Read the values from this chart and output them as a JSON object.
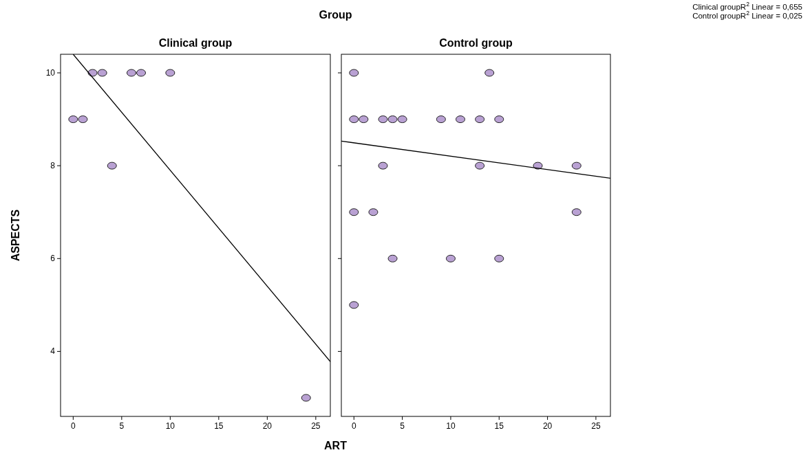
{
  "chart_data": [
    {
      "type": "scatter",
      "title": "Clinical group",
      "ylabel": "ASPECTS",
      "xlabel": "ART",
      "annotations": [
        "Group",
        "Clinical groupR$^{2}$ Linear = 0,655",
        "Control groupR$^{2}$ Linear = 0,025"
      ],
      "xlim": [
        -1.3,
        26.5
      ],
      "ylim": [
        2.6,
        10.4
      ],
      "xticks": [
        0,
        5,
        10,
        15,
        20,
        25
      ],
      "yticks": [
        4,
        6,
        8,
        10
      ],
      "grid": false,
      "marker": "circle",
      "series": [
        {
          "color": "#b9a1d3",
          "x": [
            0,
            1,
            2,
            3,
            6,
            7,
            10,
            4,
            24
          ],
          "values": [
            9,
            9,
            10,
            10,
            10,
            10,
            10,
            8,
            3
          ]
        },
        {
          "type": "line",
          "color": "#000000",
          "marker": "none",
          "x": [
            0,
            26.5
          ],
          "values": [
            10.4,
            3.78
          ]
        }
      ]
    },
    {
      "type": "scatter",
      "title": "Control group",
      "xlim": [
        -1.3,
        26.5
      ],
      "ylim": [
        2.6,
        10.4
      ],
      "xticks": [
        0,
        5,
        10,
        15,
        20,
        25
      ],
      "yticks": [
        4,
        6,
        8,
        10
      ],
      "tick_labels": "x",
      "grid": false,
      "marker": "circle",
      "series": [
        {
          "color": "#b9a1d3",
          "x": [
            0,
            14,
            0,
            1,
            3,
            4,
            5,
            9,
            11,
            13,
            15,
            3,
            13,
            19,
            23,
            0,
            2,
            23,
            4,
            10,
            15,
            0
          ],
          "values": [
            10,
            10,
            9,
            9,
            9,
            9,
            9,
            9,
            9,
            9,
            9,
            8,
            8,
            8,
            8,
            7,
            7,
            7,
            6,
            6,
            6,
            5
          ]
        },
        {
          "type": "line",
          "color": "#000000",
          "marker": "none",
          "x": [
            -1.3,
            26.5
          ],
          "values": [
            8.53,
            7.73
          ]
        }
      ]
    }
  ]
}
